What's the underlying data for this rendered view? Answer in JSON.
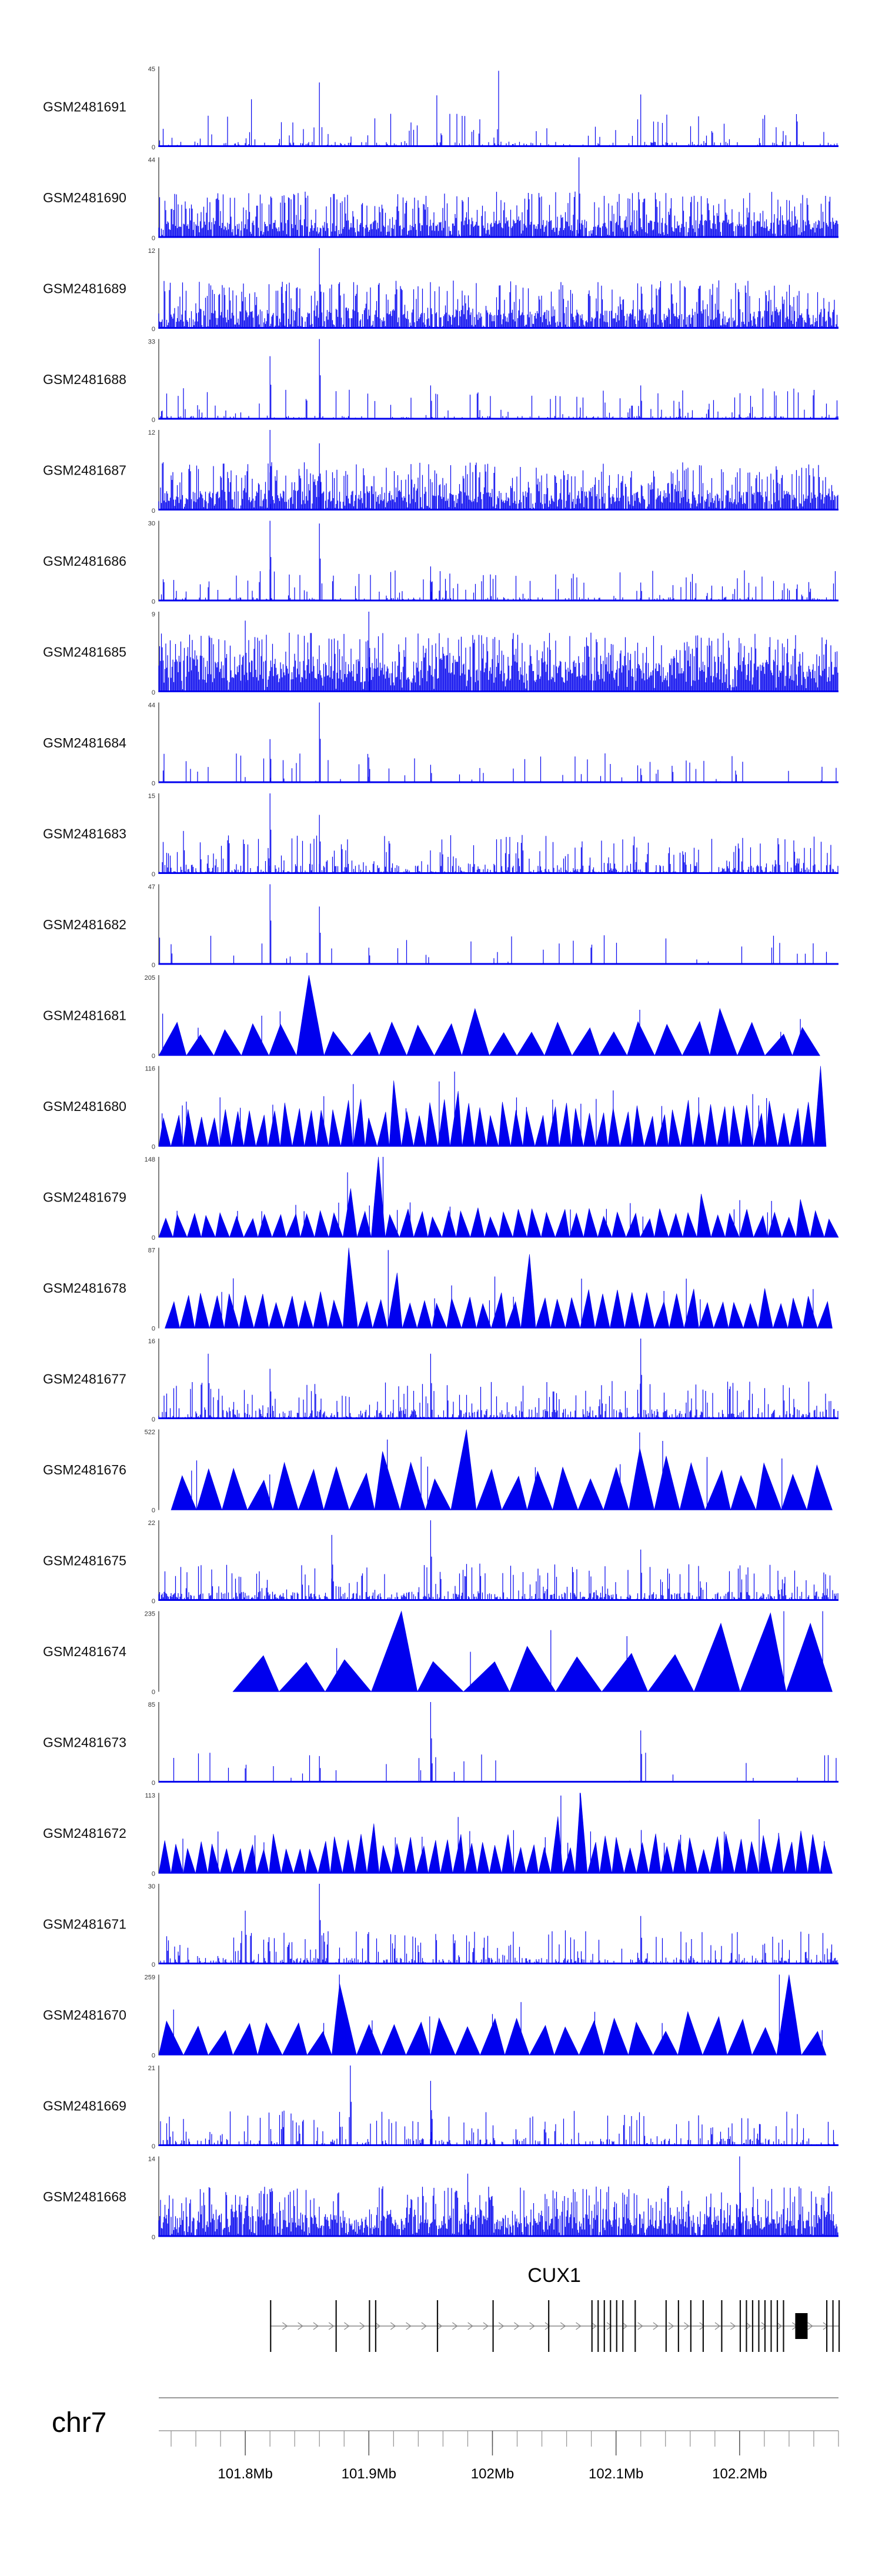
{
  "chart_data": {
    "type": "genome_tracks",
    "chromosome": "chr7",
    "x_range_mb": [
      101.73,
      102.28
    ],
    "x_tick_labels": [
      {
        "pos": 101.8,
        "label": "101.8Mb"
      },
      {
        "pos": 101.9,
        "label": "101.9Mb"
      },
      {
        "pos": 102.0,
        "label": "102Mb"
      },
      {
        "pos": 102.1,
        "label": "102.1Mb"
      },
      {
        "pos": 102.2,
        "label": "102.2Mb"
      }
    ],
    "minor_tick_step_mb": 0.02,
    "tracks": [
      {
        "name": "GSM2481691",
        "ymax": "45",
        "ymin": "0",
        "style": "bars",
        "density": 0.25,
        "base": 3,
        "peaks": [
          [
            101.8,
            1.0
          ],
          [
            101.8,
            2.0
          ],
          [
            101.8,
            3.0
          ],
          [
            101.8,
            4.0
          ]
        ]
      },
      {
        "name": "GSM2481690",
        "ymax": "44",
        "ymin": "0",
        "style": "bars",
        "density": 0.9,
        "base": 10,
        "peaks": [
          [
            102.07,
            44
          ]
        ]
      },
      {
        "name": "GSM2481689",
        "ymax": "12",
        "ymin": "0",
        "style": "bars",
        "density": 0.8,
        "base": 3,
        "peaks": [
          [
            101.86,
            12
          ],
          [
            101.83,
            7
          ]
        ]
      },
      {
        "name": "GSM2481688",
        "ymax": "33",
        "ymin": "0",
        "style": "bars",
        "density": 0.3,
        "base": 1.5,
        "peaks": [
          [
            101.82,
            26
          ],
          [
            101.86,
            33
          ],
          [
            101.95,
            14
          ],
          [
            102.12,
            14
          ]
        ]
      },
      {
        "name": "GSM2481687",
        "ymax": "12",
        "ymin": "0",
        "style": "bars",
        "density": 0.85,
        "base": 3,
        "peaks": [
          [
            101.82,
            12
          ],
          [
            101.86,
            10
          ]
        ]
      },
      {
        "name": "GSM2481686",
        "ymax": "30",
        "ymin": "0",
        "style": "bars",
        "density": 0.3,
        "base": 1.5,
        "peaks": [
          [
            101.82,
            30
          ],
          [
            101.86,
            29
          ],
          [
            101.95,
            13
          ],
          [
            102.12,
            7
          ]
        ]
      },
      {
        "name": "GSM2481685",
        "ymax": "9",
        "ymin": "0",
        "style": "bars",
        "density": 0.95,
        "base": 3.5,
        "peaks": [
          [
            101.8,
            8
          ],
          [
            101.9,
            9
          ]
        ]
      },
      {
        "name": "GSM2481684",
        "ymax": "44",
        "ymin": "0",
        "style": "bars",
        "density": 0.2,
        "base": 1,
        "peaks": [
          [
            101.82,
            24
          ],
          [
            101.86,
            44
          ],
          [
            101.9,
            14
          ],
          [
            101.95,
            10
          ],
          [
            102.12,
            8
          ]
        ]
      },
      {
        "name": "GSM2481683",
        "ymax": "15",
        "ymin": "0",
        "style": "bars",
        "density": 0.4,
        "base": 2,
        "peaks": [
          [
            101.82,
            15
          ],
          [
            101.86,
            11
          ],
          [
            101.75,
            8
          ]
        ]
      },
      {
        "name": "GSM2481682",
        "ymax": "47",
        "ymin": "0",
        "style": "bars",
        "density": 0.15,
        "base": 1,
        "peaks": [
          [
            101.82,
            47
          ],
          [
            101.86,
            34
          ],
          [
            101.9,
            10
          ],
          [
            101.74,
            12
          ]
        ]
      },
      {
        "name": "GSM2481681",
        "ymax": "205",
        "ymin": "0",
        "style": "triangles",
        "start": 101.73,
        "end": 102.265,
        "count": 24,
        "amp": 70,
        "peaks": [
          [
            101.86,
            205
          ],
          [
            101.99,
            120
          ],
          [
            102.19,
            120
          ],
          [
            101.83,
            80
          ]
        ]
      },
      {
        "name": "GSM2481680",
        "ymax": "116",
        "ymin": "0",
        "style": "triangles",
        "start": 101.73,
        "end": 102.27,
        "count": 55,
        "amp": 55,
        "peaks": [
          [
            102.265,
            116
          ],
          [
            101.92,
            95
          ],
          [
            101.97,
            80
          ]
        ]
      },
      {
        "name": "GSM2481679",
        "ymax": "148",
        "ymin": "0",
        "style": "triangles",
        "start": 101.73,
        "end": 102.28,
        "count": 48,
        "amp": 45,
        "peaks": [
          [
            101.905,
            148
          ],
          [
            101.88,
            90
          ],
          [
            102.17,
            80
          ],
          [
            102.25,
            70
          ]
        ]
      },
      {
        "name": "GSM2481678",
        "ymax": "87",
        "ymin": "0",
        "style": "triangles",
        "start": 101.735,
        "end": 102.275,
        "count": 45,
        "amp": 35,
        "peaks": [
          [
            101.88,
            87
          ],
          [
            102.03,
            80
          ],
          [
            101.92,
            60
          ]
        ]
      },
      {
        "name": "GSM2481677",
        "ymax": "16",
        "ymin": "0",
        "style": "bars",
        "density": 0.45,
        "base": 2,
        "peaks": [
          [
            102.12,
            16
          ],
          [
            101.95,
            13
          ],
          [
            101.77,
            13
          ],
          [
            101.82,
            10
          ]
        ]
      },
      {
        "name": "GSM2481676",
        "ymax": "522",
        "ymin": "0",
        "style": "triangles",
        "start": 101.74,
        "end": 102.275,
        "count": 26,
        "amp": 250,
        "peaks": [
          [
            101.97,
            522
          ],
          [
            102.12,
            400
          ],
          [
            101.92,
            380
          ],
          [
            102.14,
            350
          ]
        ]
      },
      {
        "name": "GSM2481675",
        "ymax": "22",
        "ymin": "0",
        "style": "bars",
        "density": 0.55,
        "base": 2.5,
        "peaks": [
          [
            101.95,
            22
          ],
          [
            101.87,
            18
          ],
          [
            102.12,
            14
          ]
        ]
      },
      {
        "name": "GSM2481674",
        "ymax": "235",
        "ymin": "0",
        "style": "triangles",
        "start": 101.79,
        "end": 102.275,
        "count": 13,
        "amp": 110,
        "peaks": [
          [
            101.905,
            235
          ],
          [
            102.205,
            230
          ],
          [
            102.165,
            200
          ],
          [
            102.25,
            200
          ]
        ]
      },
      {
        "name": "GSM2481673",
        "ymax": "85",
        "ymin": "0",
        "style": "bars",
        "density": 0.15,
        "base": 2,
        "peaks": [
          [
            101.95,
            85
          ],
          [
            102.12,
            55
          ],
          [
            101.86,
            28
          ]
        ]
      },
      {
        "name": "GSM2481672",
        "ymax": "113",
        "ymin": "0",
        "style": "triangles",
        "start": 101.73,
        "end": 102.275,
        "count": 55,
        "amp": 45,
        "peaks": [
          [
            102.07,
            113
          ],
          [
            102.05,
            80
          ],
          [
            101.9,
            70
          ],
          [
            102.25,
            60
          ]
        ]
      },
      {
        "name": "GSM2481671",
        "ymax": "30",
        "ymin": "0",
        "style": "bars",
        "density": 0.4,
        "base": 2.5,
        "peaks": [
          [
            101.86,
            30
          ],
          [
            101.8,
            20
          ],
          [
            102.12,
            18
          ]
        ]
      },
      {
        "name": "GSM2481670",
        "ymax": "259",
        "ymin": "0",
        "style": "triangles",
        "start": 101.73,
        "end": 102.27,
        "count": 27,
        "amp": 100,
        "peaks": [
          [
            102.24,
            259
          ],
          [
            101.885,
            230
          ],
          [
            102.16,
            140
          ]
        ]
      },
      {
        "name": "GSM2481669",
        "ymax": "21",
        "ymin": "0",
        "style": "bars",
        "density": 0.35,
        "base": 2,
        "peaks": [
          [
            101.885,
            21
          ],
          [
            101.95,
            17
          ],
          [
            101.83,
            9
          ]
        ]
      },
      {
        "name": "GSM2481668",
        "ymax": "14",
        "ymin": "0",
        "style": "bars",
        "density": 0.9,
        "base": 4,
        "peaks": [
          [
            102.2,
            14
          ],
          [
            101.98,
            11
          ]
        ]
      }
    ],
    "gene": {
      "name": "CUX1",
      "start": 101.82,
      "end": 102.28,
      "strand": "+",
      "exons": [
        101.82,
        101.873,
        101.9,
        101.905,
        101.955,
        102.0,
        102.045,
        102.08,
        102.085,
        102.09,
        102.095,
        102.1,
        102.105,
        102.115,
        102.14,
        102.15,
        102.16,
        102.17,
        102.185,
        102.2,
        102.205,
        102.21,
        102.215,
        102.22,
        102.225,
        102.23,
        102.235,
        102.27,
        102.275,
        102.28
      ],
      "thick_exon": [
        102.245,
        102.255
      ]
    }
  }
}
